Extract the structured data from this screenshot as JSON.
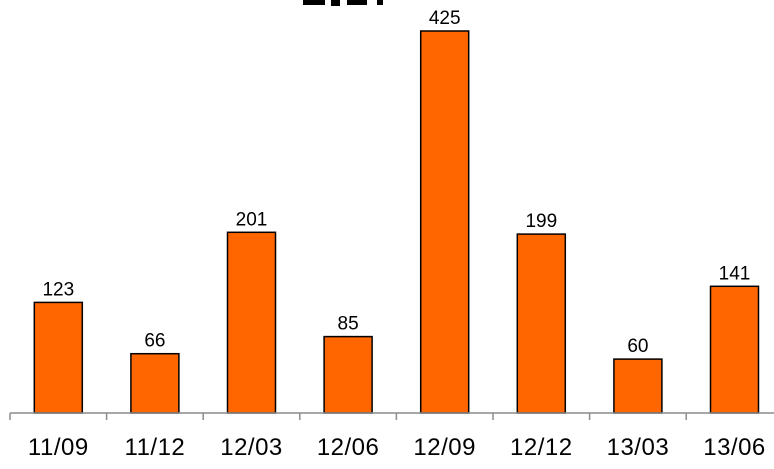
{
  "chart_data": {
    "type": "bar",
    "title": "",
    "xlabel": "",
    "ylabel": "",
    "categories": [
      "11/09",
      "11/12",
      "12/03",
      "12/06",
      "12/09",
      "12/12",
      "13/03",
      "13/06"
    ],
    "values": [
      123,
      66,
      201,
      85,
      425,
      199,
      60,
      141
    ],
    "data_labels": [
      "123",
      "66",
      "201",
      "85",
      "425",
      "199",
      "60",
      "141"
    ],
    "ylim": [
      0,
      425
    ],
    "grid": false,
    "legend": "none",
    "bar_color": "#ff6600",
    "bar_outline_color": "#000000",
    "axis_color": "#8c8c8c"
  }
}
